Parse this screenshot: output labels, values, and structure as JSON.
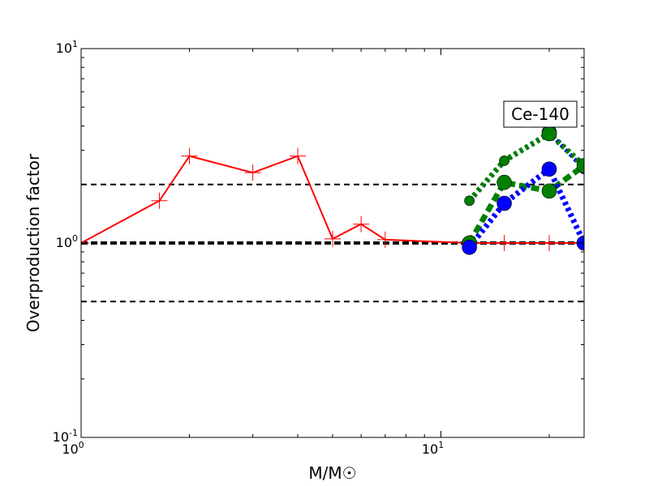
{
  "chart_data": {
    "type": "line",
    "xscale": "log",
    "yscale": "log",
    "xlim": [
      1,
      25
    ],
    "ylim": [
      0.1,
      10
    ],
    "xlabel": "M/M☉",
    "ylabel": "Overproduction factor",
    "annotation": "Ce-140",
    "x_ticks": [
      {
        "value": 1,
        "base": "10",
        "exp": "0"
      },
      {
        "value": 10,
        "base": "10",
        "exp": "1"
      }
    ],
    "y_ticks": [
      {
        "value": 0.1,
        "base": "10",
        "exp": "-1"
      },
      {
        "value": 1,
        "base": "10",
        "exp": "0"
      },
      {
        "value": 10,
        "base": "10",
        "exp": "1"
      }
    ],
    "reference_lines": [
      {
        "y": 2,
        "style": "dashed",
        "color": "#000000",
        "width": 2
      },
      {
        "y": 1,
        "style": "dashed",
        "color": "#000000",
        "width": 4
      },
      {
        "y": 0.5,
        "style": "dashed",
        "color": "#000000",
        "width": 2
      }
    ],
    "series": [
      {
        "color": "#ff0000",
        "style": "solid",
        "marker": "plus",
        "x": [
          1,
          1.65,
          2,
          3,
          4,
          5,
          6,
          7,
          12,
          15,
          20,
          25
        ],
        "y": [
          1.0,
          1.65,
          2.8,
          2.3,
          2.8,
          1.05,
          1.25,
          1.04,
          1.0,
          1.0,
          1.0,
          1.0
        ]
      },
      {
        "color": "#0000ff",
        "style": "dotted",
        "marker": "circle",
        "x": [
          12,
          15,
          20,
          25
        ],
        "y": [
          1.65,
          2.65,
          3.7,
          2.4
        ]
      },
      {
        "color": "#008000",
        "style": "dotted",
        "marker": "circle",
        "x": [
          12,
          15,
          20,
          25
        ],
        "y": [
          1.65,
          2.65,
          3.65,
          2.5
        ]
      },
      {
        "color": "#008000",
        "style": "dashed",
        "marker": "circle",
        "x": [
          12,
          15,
          20,
          25
        ],
        "y": [
          1.0,
          2.05,
          1.85,
          2.5
        ]
      },
      {
        "color": "#0000ff",
        "style": "dotted",
        "marker": "circle",
        "x": [
          12,
          15,
          20,
          25
        ],
        "y": [
          0.95,
          1.6,
          2.4,
          1.0
        ]
      }
    ]
  }
}
